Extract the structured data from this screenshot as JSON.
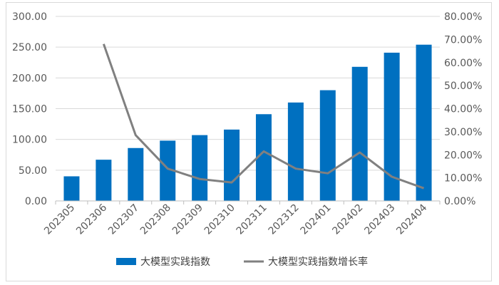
{
  "chart_data": {
    "type": "bar",
    "categories": [
      "202305",
      "202306",
      "202307",
      "202308",
      "202309",
      "202310",
      "202311",
      "202312",
      "202401",
      "202402",
      "202403",
      "202404"
    ],
    "series": [
      {
        "name": "大模型实践指数",
        "type": "bar",
        "axis": "left",
        "color": "#0070C0",
        "values": [
          40,
          67,
          86,
          98,
          107,
          116,
          141,
          160,
          180,
          218,
          241,
          254
        ]
      },
      {
        "name": "大模型实践指数增长率",
        "type": "line",
        "axis": "right",
        "color": "#808080",
        "values": [
          null,
          0.68,
          0.285,
          0.14,
          0.095,
          0.08,
          0.215,
          0.14,
          0.12,
          0.21,
          0.105,
          0.055
        ]
      }
    ],
    "y_left": {
      "range": [
        0,
        300
      ],
      "ticks": [
        "0.00",
        "50.00",
        "100.00",
        "150.00",
        "200.00",
        "250.00",
        "300.00"
      ]
    },
    "y_right": {
      "range": [
        0,
        0.8
      ],
      "ticks": [
        "0.00%",
        "10.00%",
        "20.00%",
        "30.00%",
        "40.00%",
        "50.00%",
        "60.00%",
        "70.00%",
        "80.00%"
      ]
    },
    "grid": true,
    "legend_position": "bottom"
  }
}
